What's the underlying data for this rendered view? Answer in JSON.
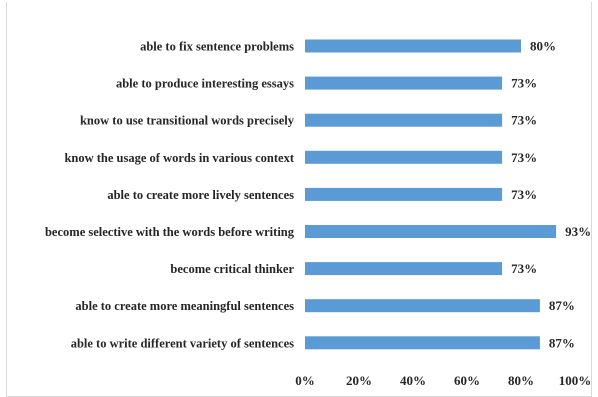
{
  "chart_data": {
    "type": "bar",
    "orientation": "horizontal",
    "categories": [
      "able to fix sentence problems",
      "able to produce interesting essays",
      "know to use transitional words precisely",
      "know the usage of words in various context",
      "able to create more lively sentences",
      "become selective with the words before writing",
      "become critical thinker",
      "able to create more meaningful sentences",
      "able to write different variety of sentences"
    ],
    "values": [
      80,
      73,
      73,
      73,
      73,
      93,
      73,
      87,
      87
    ],
    "value_labels": [
      "80%",
      "73%",
      "73%",
      "73%",
      "73%",
      "93%",
      "73%",
      "87%",
      "87%"
    ],
    "xlim": [
      0,
      100
    ],
    "x_ticks": [
      0,
      20,
      40,
      60,
      80,
      100
    ],
    "x_tick_labels": [
      "0%",
      "20%",
      "40%",
      "60%",
      "80%",
      "100%"
    ],
    "title": "",
    "xlabel": "",
    "ylabel": "",
    "grid": false,
    "legend": "none",
    "bar_color": "#5b9bd5"
  }
}
